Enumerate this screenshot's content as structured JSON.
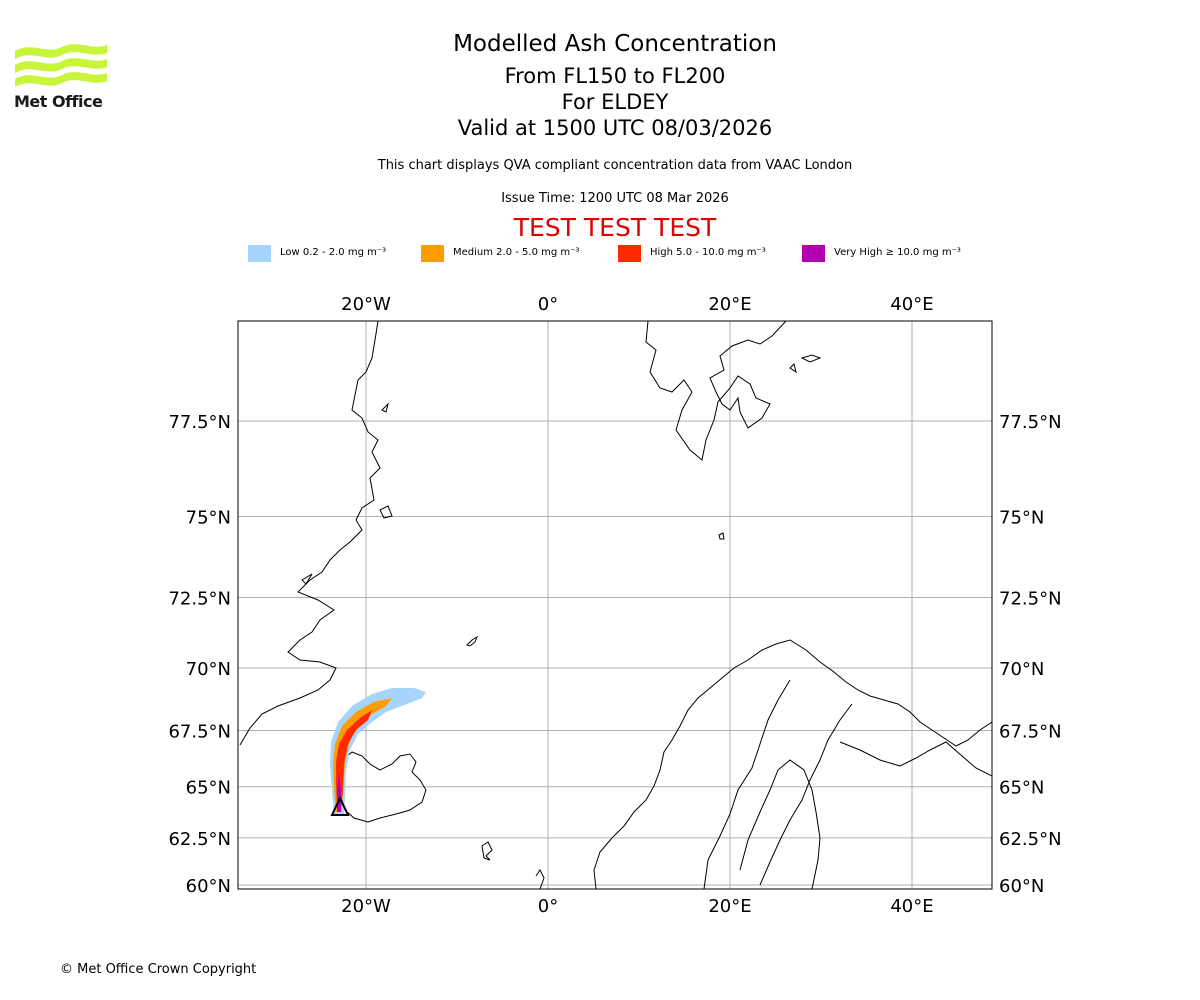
{
  "brand": {
    "name": "Met Office",
    "logo_color": "#c8f53a"
  },
  "header": {
    "title": "Modelled Ash Concentration",
    "levels": "From FL150 to FL200",
    "region": "For ELDEY",
    "valid": "Valid at 1500 UTC 08/03/2026",
    "description": "This chart displays QVA compliant concentration data from VAAC London",
    "issue_time": "Issue Time: 1200 UTC 08 Mar 2026",
    "test_banner": "TEST TEST TEST",
    "test_color": "#e00000"
  },
  "legend": [
    {
      "label": "Low 0.2 - 2.0 mg m⁻³",
      "color": "#a6d4fa"
    },
    {
      "label": "Medium 2.0 - 5.0 mg m⁻³",
      "color": "#ff9d00"
    },
    {
      "label": "High 5.0 - 10.0 mg m⁻³",
      "color": "#ff2a00"
    },
    {
      "label": "Very High  ≥  10.0 mg m⁻³",
      "color": "#b000b0"
    }
  ],
  "map": {
    "longitude_labels": [
      "20°W",
      "0°",
      "20°E",
      "40°E"
    ],
    "latitude_labels": [
      "77.5°N",
      "75°N",
      "72.5°N",
      "70°N",
      "67.5°N",
      "65°N",
      "62.5°N",
      "60°N"
    ],
    "longitude_values": [
      -20,
      0,
      20,
      40
    ],
    "latitude_values": [
      77.5,
      75,
      72.5,
      70,
      67.5,
      65,
      62.5,
      60
    ],
    "grid": true
  },
  "footer": {
    "copyright": "© Met Office Crown Copyright"
  }
}
